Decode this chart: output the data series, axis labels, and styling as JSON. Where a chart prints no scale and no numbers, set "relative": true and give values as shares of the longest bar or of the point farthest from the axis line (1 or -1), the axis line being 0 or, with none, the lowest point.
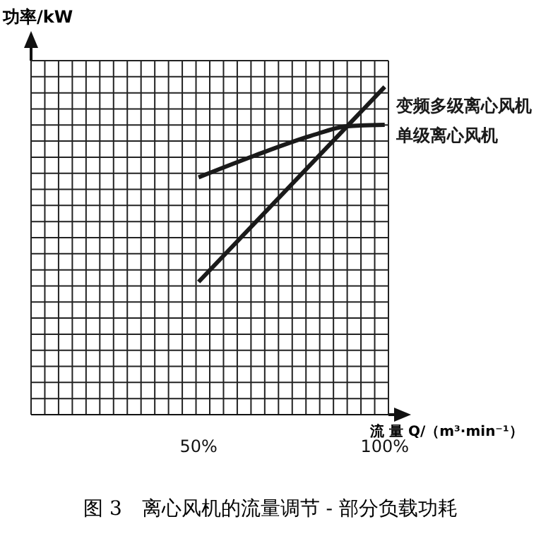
{
  "chart_data": {
    "type": "line",
    "title": "图 3　离心风机的流量调节 - 部分负载功耗",
    "xlabel": "流 量 Q/（m³·min⁻¹）",
    "ylabel": "功率/kW",
    "relative": true,
    "xlim": [
      5,
      101
    ],
    "xticks": [
      {
        "value": 50,
        "label": "50%"
      },
      {
        "value": 100,
        "label": "100%"
      }
    ],
    "grid": true,
    "legend": false,
    "marker": "none",
    "line_style": "solid",
    "series": [
      {
        "name": "变频多级离心风机",
        "color": "#1a1a1a",
        "x": [
          50,
          100
        ],
        "values": [
          0.405,
          1
        ]
      },
      {
        "name": "单级离心风机",
        "color": "#1a1a1a",
        "x": [
          50,
          65,
          80,
          90,
          100
        ],
        "values": [
          0.724,
          0.79,
          0.85,
          0.88,
          0.884
        ]
      }
    ]
  }
}
